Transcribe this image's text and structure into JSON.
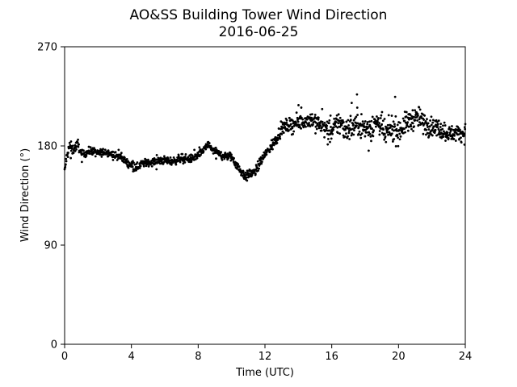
{
  "chart_data": {
    "type": "scatter",
    "title": "AO&SS Building Tower Wind Direction",
    "subtitle": "2016-06-25",
    "xlabel": "Time (UTC)",
    "ylabel": "Wind Direction (°)",
    "xlim": [
      0,
      24
    ],
    "ylim": [
      0,
      270
    ],
    "x_ticks": [
      0,
      4,
      8,
      12,
      16,
      20,
      24
    ],
    "x_tick_labels": [
      "0",
      "4",
      "8",
      "12",
      "16",
      "20",
      "24"
    ],
    "y_ticks": [
      0,
      90,
      180,
      270
    ],
    "y_tick_labels": [
      "0",
      "90",
      "180",
      "270"
    ],
    "grid": false,
    "marker_color": "#000000",
    "series": [
      {
        "name": "",
        "trend_x": [
          0.0,
          0.1,
          0.3,
          0.5,
          0.8,
          1.0,
          1.3,
          1.6,
          2.0,
          2.5,
          3.0,
          3.4,
          3.8,
          4.1,
          4.3,
          4.6,
          5.0,
          5.5,
          6.0,
          6.5,
          7.0,
          7.5,
          8.0,
          8.3,
          8.6,
          8.9,
          9.2,
          9.6,
          10.0,
          10.3,
          10.6,
          10.9,
          11.1,
          11.4,
          11.7,
          12.0,
          12.3,
          12.6,
          12.9,
          13.2,
          13.6,
          14.0,
          14.4,
          14.8,
          15.2,
          15.6,
          16.0,
          16.4,
          16.8,
          17.2,
          17.6,
          18.0,
          18.4,
          18.8,
          19.2,
          19.6,
          20.0,
          20.4,
          20.8,
          21.2,
          21.6,
          22.0,
          22.4,
          22.8,
          23.2,
          23.6,
          24.0
        ],
        "trend_y": [
          157,
          168,
          180,
          176,
          182,
          172,
          174,
          176,
          173,
          175,
          171,
          170,
          164,
          163,
          160,
          164,
          165,
          166,
          167,
          166,
          169,
          168,
          171,
          176,
          181,
          176,
          173,
          171,
          170,
          163,
          156,
          152,
          155,
          156,
          165,
          172,
          178,
          185,
          193,
          198,
          199,
          201,
          203,
          204,
          200,
          196,
          192,
          202,
          196,
          197,
          201,
          195,
          198,
          202,
          190,
          196,
          193,
          200,
          204,
          206,
          199,
          198,
          196,
          193,
          191,
          192,
          191
        ],
        "scatter_spread": [
          2.5,
          3,
          4,
          3,
          3,
          2.5,
          2.5,
          2.5,
          2.5,
          2.5,
          2.5,
          2.5,
          2.5,
          3,
          2.5,
          2.5,
          2.5,
          2.5,
          2.5,
          2.5,
          2.5,
          2.5,
          2.5,
          2.5,
          2.5,
          2.5,
          2.5,
          2.5,
          3,
          3,
          3,
          3,
          3,
          3,
          3,
          3,
          3.5,
          4,
          4,
          4,
          5,
          5,
          5,
          6,
          6,
          6,
          7,
          8,
          8,
          8,
          8,
          8,
          8,
          8,
          8,
          8,
          8,
          7,
          7,
          7,
          7,
          6,
          6,
          6,
          5,
          5,
          5
        ]
      }
    ]
  }
}
